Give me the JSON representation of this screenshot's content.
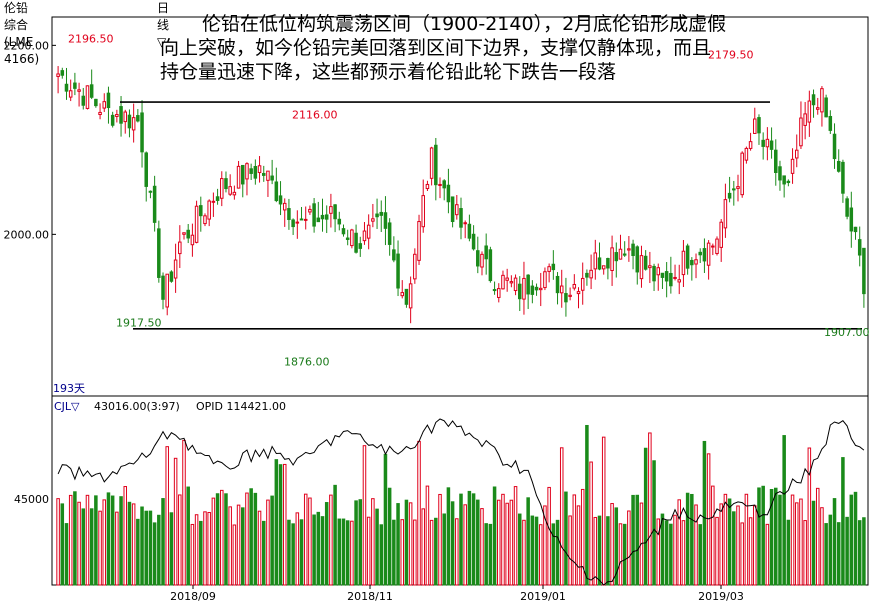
{
  "header": {
    "symbol": "伦铅综合(LME 4166)",
    "period": "日线",
    "dropdown_glyph": "▽"
  },
  "annotation": {
    "line1": "伦铅在低位构筑震荡区间（1900-2140），2月底伦铅形成虚假",
    "line2": "向上突破，如今伦铅完美回落到区间下边界，支撑仅静体现，而且",
    "line3": "持仓量迅速下降，这些都预示着伦铅此轮下跌告一段落"
  },
  "chart_data": {
    "type": "candlestick",
    "price_ylim": [
      1830,
      2230
    ],
    "price_ticks": [
      "2200.00",
      "2000.00"
    ],
    "x_ticks": [
      "2018/09",
      "2018/11",
      "2019/01",
      "2019/03"
    ],
    "bars_count_label": "193天",
    "price_annotations": [
      {
        "label": "2196.50",
        "value": 2196.5,
        "color": "#e0001b"
      },
      {
        "label": "2116.00",
        "value": 2116.0,
        "color": "#e0001b"
      },
      {
        "label": "2179.50",
        "value": 2179.5,
        "color": "#e0001b"
      },
      {
        "label": "1917.50",
        "value": 1917.5,
        "color": "#1a7a1a"
      },
      {
        "label": "1876.00",
        "value": 1876.0,
        "color": "#1a7a1a"
      },
      {
        "label": "1907.00",
        "value": 1907.0,
        "color": "#1a7a1a"
      }
    ],
    "range_lines": [
      2140,
      1900
    ],
    "indicator": {
      "name": "CJL",
      "volume_text": "43016.00(3:97)",
      "oi_text": "OPID 114421.00",
      "ytick": "45000"
    },
    "colors": {
      "up": "#e0001b",
      "down": "#1a8a1a",
      "oi_line": "#000000"
    }
  }
}
